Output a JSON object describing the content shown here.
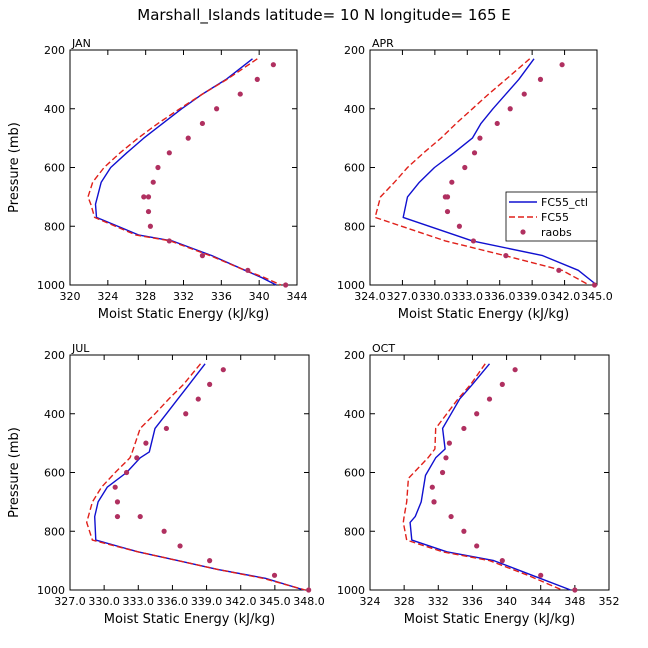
{
  "figure": {
    "title": "Marshall_Islands   latitude= 10 N longitude= 165 E"
  },
  "colors": {
    "ctl": "#1010d0",
    "fc55": "#e0201a",
    "raobs": "#b03060",
    "axis": "#000000"
  },
  "chart_data": [
    {
      "type": "line",
      "panel": "JAN",
      "title": "JAN",
      "xlabel": "Moist Static Energy (kJ/kg)",
      "ylabel": "Pressure (mb)",
      "xlim": [
        320,
        344
      ],
      "ylim": [
        1000,
        200
      ],
      "xticks": [
        320,
        324,
        328,
        332,
        336,
        340,
        344
      ],
      "xtick_labels": [
        "320",
        "324",
        "328",
        "332",
        "336",
        "340",
        "344"
      ],
      "yticks": [
        200,
        400,
        600,
        800,
        1000
      ],
      "ytick_labels": [
        "200",
        "400",
        "600",
        "800",
        "1000"
      ],
      "legend": null,
      "series": [
        {
          "name": "FC55_ctl",
          "style": "solid",
          "x": [
            339.3,
            336.5,
            334,
            331.8,
            329.8,
            327.8,
            326,
            324.3,
            323.3,
            322.9,
            322.7,
            322.8,
            327.3,
            330.8,
            335,
            338.5,
            340.3,
            341.8
          ],
          "y": [
            230,
            300,
            350,
            400,
            450,
            500,
            550,
            600,
            650,
            700,
            725,
            770,
            830,
            850,
            900,
            950,
            975,
            1000
          ]
        },
        {
          "name": "FC55",
          "style": "dashed",
          "x": [
            339.8,
            336.6,
            334,
            331.6,
            329.3,
            327.2,
            325.3,
            323.6,
            322.4,
            321.9,
            322.2,
            322.6,
            327,
            330.6,
            334.8,
            338.5,
            340.6,
            342.3
          ],
          "y": [
            230,
            300,
            350,
            400,
            450,
            500,
            550,
            600,
            650,
            700,
            725,
            770,
            830,
            850,
            900,
            950,
            975,
            1000
          ]
        },
        {
          "name": "raobs",
          "style": "points",
          "x": [
            341.5,
            339.8,
            338,
            335.5,
            334,
            332.5,
            330.5,
            329.3,
            328.8,
            328.3,
            327.8,
            328.3,
            328.5,
            330.5,
            334,
            338.8,
            342.8
          ],
          "y": [
            250,
            300,
            350,
            400,
            450,
            500,
            550,
            600,
            650,
            700,
            700,
            750,
            800,
            850,
            900,
            950,
            1000
          ]
        }
      ]
    },
    {
      "type": "line",
      "panel": "APR",
      "title": "APR",
      "xlabel": "Moist Static Energy (kJ/kg)",
      "ylabel": "",
      "xlim": [
        324.03,
        345.03
      ],
      "ylim": [
        1000,
        200
      ],
      "xticks": [
        324.03,
        327.03,
        330.03,
        333.03,
        336.03,
        339.03,
        342.03,
        345.03
      ],
      "xtick_labels": [
        "324.0",
        "327.0",
        "330.0",
        "333.0",
        "336.0",
        "339.0",
        "342.0",
        "345.0"
      ],
      "yticks": [
        200,
        400,
        600,
        800,
        1000
      ],
      "ytick_labels": [
        "200",
        "400",
        "600",
        "800",
        "1000"
      ],
      "legend": {
        "position": "right-middle",
        "entries": [
          "FC55_ctl",
          "FC55",
          "raobs"
        ]
      },
      "series": [
        {
          "name": "FC55_ctl",
          "style": "solid",
          "x": [
            339.2,
            337.8,
            336.6,
            335.4,
            334.3,
            333.5,
            331.8,
            330,
            328.6,
            327.5,
            327.1,
            333.5,
            340,
            343.3,
            345
          ],
          "y": [
            230,
            300,
            350,
            400,
            450,
            500,
            550,
            600,
            650,
            700,
            770,
            850,
            900,
            950,
            1000
          ]
        },
        {
          "name": "FC55",
          "style": "dashed",
          "x": [
            338.8,
            336.6,
            335,
            333.5,
            332,
            330.6,
            329,
            327.5,
            326.3,
            325,
            324.5,
            331,
            336.5,
            341.8,
            344.3
          ],
          "y": [
            230,
            300,
            350,
            400,
            450,
            500,
            550,
            600,
            650,
            700,
            770,
            850,
            900,
            950,
            1000
          ]
        },
        {
          "name": "raobs",
          "style": "points",
          "x": [
            341.8,
            339.8,
            338.3,
            337,
            335.8,
            334.2,
            333.7,
            332.8,
            331.6,
            331.2,
            331,
            331.2,
            332.3,
            333.6,
            336.6,
            341.5,
            344.8
          ],
          "y": [
            250,
            300,
            350,
            400,
            450,
            500,
            550,
            600,
            650,
            700,
            700,
            750,
            800,
            850,
            900,
            950,
            1000
          ]
        }
      ]
    },
    {
      "type": "line",
      "panel": "JUL",
      "title": "JUL",
      "xlabel": "Moist Static Energy (kJ/kg)",
      "ylabel": "Pressure (mb)",
      "xlim": [
        327.03,
        348.03
      ],
      "ylim": [
        1000,
        200
      ],
      "xticks": [
        327.03,
        330.03,
        333.03,
        336.03,
        339.03,
        342.03,
        345.03,
        348.03
      ],
      "xtick_labels": [
        "327.0",
        "330.0",
        "333.0",
        "336.0",
        "339.0",
        "342.0",
        "345.0",
        "348.0"
      ],
      "yticks": [
        200,
        400,
        600,
        800,
        1000
      ],
      "ytick_labels": [
        "200",
        "400",
        "600",
        "800",
        "1000"
      ],
      "legend": null,
      "series": [
        {
          "name": "FC55_ctl",
          "style": "solid",
          "x": [
            338.9,
            337.5,
            336.5,
            335.5,
            334.5,
            334,
            333.2,
            332,
            330.3,
            329.5,
            329.2,
            329.3,
            333,
            336.5,
            340,
            344.2,
            347.6
          ],
          "y": [
            230,
            300,
            350,
            400,
            450,
            530,
            550,
            600,
            650,
            700,
            750,
            830,
            870,
            900,
            930,
            960,
            1000
          ]
        },
        {
          "name": "FC55",
          "style": "dashed",
          "x": [
            338.5,
            337,
            335.7,
            334.5,
            333.2,
            332.5,
            332.3,
            331,
            329.8,
            329,
            328.5,
            329,
            333,
            336.5,
            340,
            344,
            347.7
          ],
          "y": [
            230,
            300,
            350,
            400,
            450,
            530,
            550,
            600,
            650,
            700,
            770,
            830,
            870,
            900,
            930,
            960,
            1000
          ]
        },
        {
          "name": "raobs",
          "style": "points",
          "x": [
            340.5,
            339.3,
            338.3,
            337.2,
            335.5,
            333.7,
            332.9,
            332,
            331,
            331.2,
            331.2,
            333.2,
            335.3,
            336.7,
            339.3,
            345,
            348
          ],
          "y": [
            250,
            300,
            350,
            400,
            450,
            500,
            550,
            600,
            650,
            700,
            750,
            750,
            800,
            850,
            900,
            950,
            1000
          ]
        }
      ]
    },
    {
      "type": "line",
      "panel": "OCT",
      "title": "OCT",
      "xlabel": "Moist Static Energy (kJ/kg)",
      "ylabel": "",
      "xlim": [
        324,
        352
      ],
      "ylim": [
        1000,
        200
      ],
      "xticks": [
        324,
        328,
        332,
        336,
        340,
        344,
        348,
        352
      ],
      "xtick_labels": [
        "324",
        "328",
        "332",
        "336",
        "340",
        "344",
        "348",
        "352"
      ],
      "yticks": [
        200,
        400,
        600,
        800,
        1000
      ],
      "ytick_labels": [
        "200",
        "400",
        "600",
        "800",
        "1000"
      ],
      "legend": null,
      "series": [
        {
          "name": "FC55_ctl",
          "style": "solid",
          "x": [
            338,
            336,
            334.5,
            333.5,
            332.5,
            332.8,
            331.7,
            330.5,
            330,
            329.3,
            328.7,
            328.9,
            333,
            338.5,
            343,
            347.5
          ],
          "y": [
            230,
            300,
            350,
            400,
            450,
            520,
            550,
            610,
            700,
            750,
            770,
            830,
            870,
            900,
            950,
            1000
          ]
        },
        {
          "name": "FC55",
          "style": "dashed",
          "x": [
            337.5,
            335.8,
            334.3,
            333,
            331.7,
            331.6,
            330.8,
            328.5,
            328.3,
            328,
            327.9,
            328.3,
            332.5,
            338,
            342.5,
            346.5
          ],
          "y": [
            230,
            300,
            350,
            400,
            450,
            520,
            550,
            620,
            700,
            750,
            770,
            830,
            870,
            900,
            950,
            1000
          ]
        },
        {
          "name": "raobs",
          "style": "points",
          "x": [
            341,
            339.5,
            338,
            336.5,
            335,
            333.3,
            332.9,
            332.5,
            331.3,
            331.5,
            331.5,
            333.5,
            335,
            336.5,
            339.5,
            344,
            348
          ],
          "y": [
            250,
            300,
            350,
            400,
            450,
            500,
            550,
            600,
            650,
            700,
            700,
            750,
            800,
            850,
            900,
            950,
            1000
          ]
        }
      ]
    }
  ]
}
